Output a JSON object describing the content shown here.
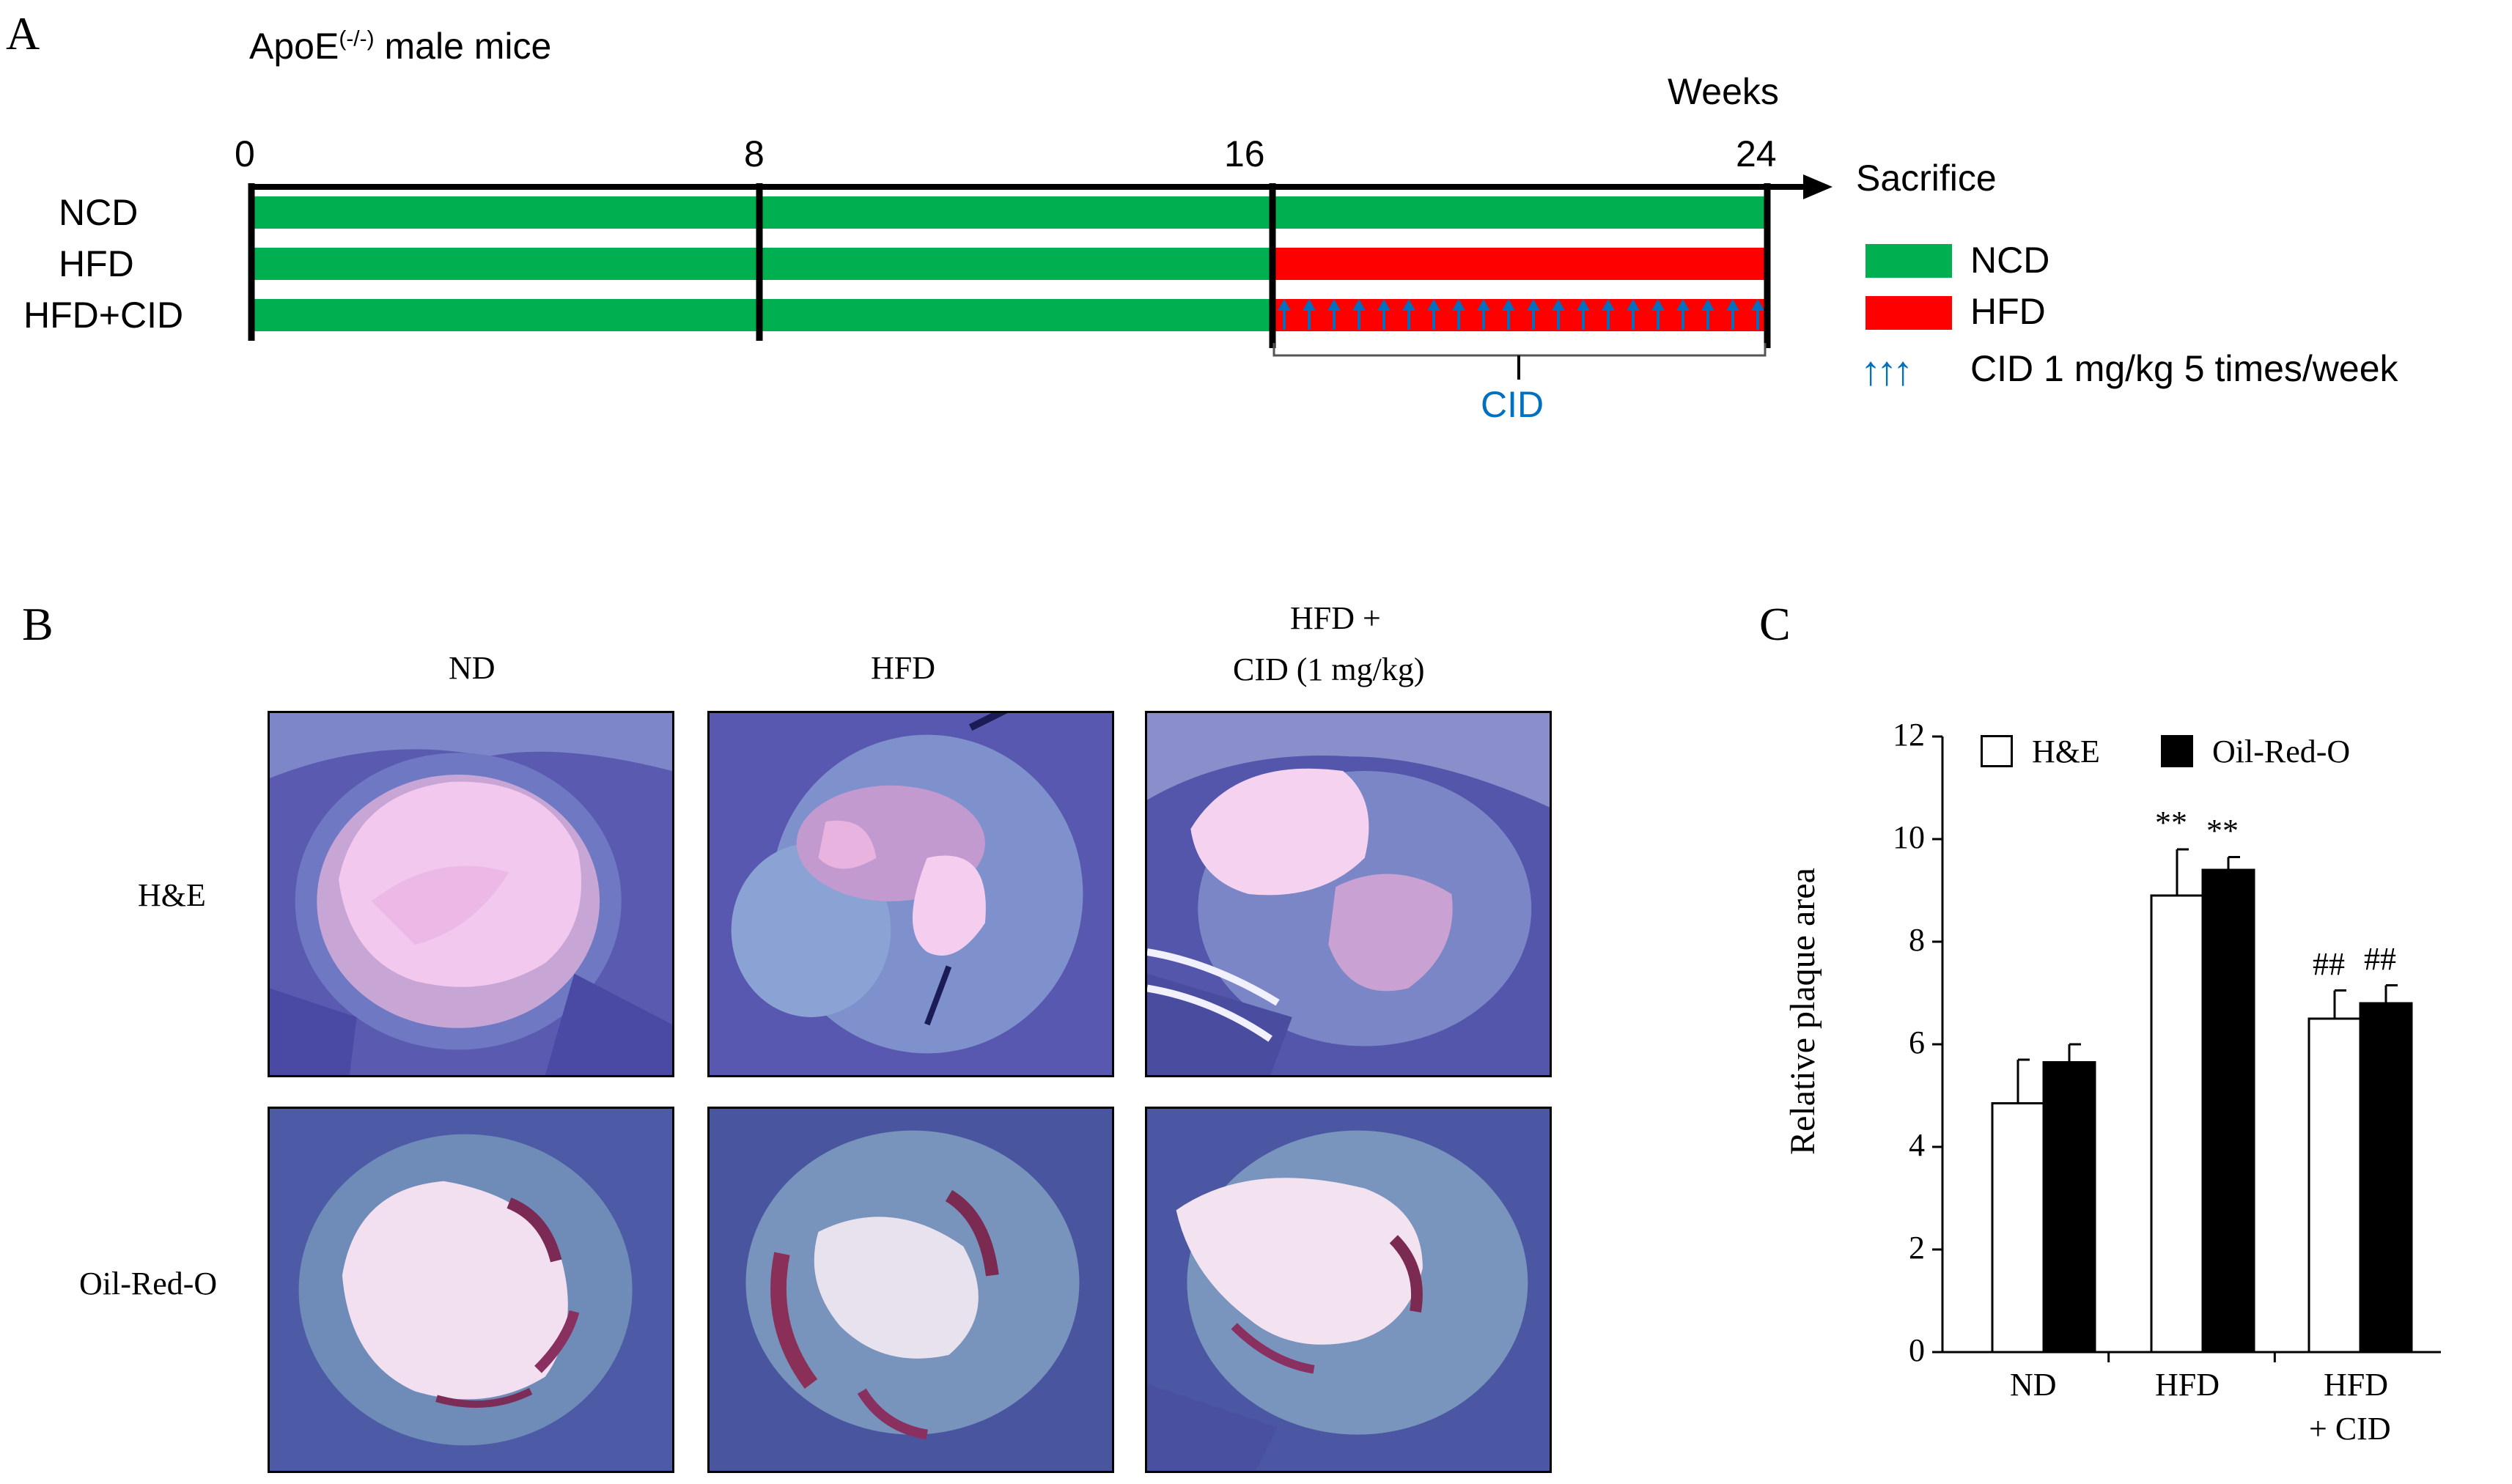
{
  "panel_a": {
    "letter": "A",
    "title_base": "ApoE",
    "title_sup": "(-/-)",
    "title_rest": " male mice",
    "weeks_label": "Weeks",
    "ticks": [
      "0",
      "8",
      "16",
      "24"
    ],
    "sacrifice_label": "Sacrifice",
    "groups": [
      "NCD",
      "HFD",
      "HFD+CID"
    ],
    "cid_bracket_label": "CID",
    "legend": {
      "ncd": "NCD",
      "hfd": "HFD",
      "cid": "CID 1 mg/kg 5 times/week",
      "cid_arrows": "↑↑↑"
    },
    "colors": {
      "ncd": "#00b050",
      "hfd": "#ff0000",
      "cid": "#0070c0"
    }
  },
  "panel_b": {
    "letter": "B",
    "columns": [
      "ND",
      "HFD",
      "HFD +",
      "CID (1 mg/kg)"
    ],
    "rows": [
      "H&E",
      "Oil-Red-O"
    ]
  },
  "panel_c": {
    "letter": "C",
    "legend_he": "H&E",
    "legend_oro": "Oil-Red-O",
    "ylabel": "Relative plaque area",
    "yticks": [
      "0",
      "2",
      "4",
      "6",
      "8",
      "10",
      "12"
    ],
    "xlabels": [
      "ND",
      "HFD",
      "HFD",
      "+ CID"
    ],
    "annotations": [
      "**",
      "**",
      "##",
      "##"
    ]
  },
  "chart_data": {
    "type": "bar",
    "title": "",
    "xlabel": "",
    "ylabel": "Relative plaque area",
    "categories": [
      "ND",
      "HFD",
      "HFD + CID"
    ],
    "ylim": [
      0,
      12
    ],
    "yticks": [
      0,
      2,
      4,
      6,
      8,
      10,
      12
    ],
    "series": [
      {
        "name": "H&E",
        "color": "#ffffff",
        "values": [
          4.85,
          8.9,
          6.5
        ],
        "errors": [
          0.85,
          0.9,
          0.55
        ]
      },
      {
        "name": "Oil-Red-O",
        "color": "#000000",
        "values": [
          5.65,
          9.4,
          6.8
        ],
        "errors": [
          0.35,
          0.25,
          0.35
        ]
      }
    ],
    "annotations": [
      {
        "text": "**",
        "series": "H&E",
        "category": "HFD"
      },
      {
        "text": "**",
        "series": "Oil-Red-O",
        "category": "HFD"
      },
      {
        "text": "##",
        "series": "H&E",
        "category": "HFD + CID"
      },
      {
        "text": "##",
        "series": "Oil-Red-O",
        "category": "HFD + CID"
      }
    ],
    "legend": "top"
  }
}
